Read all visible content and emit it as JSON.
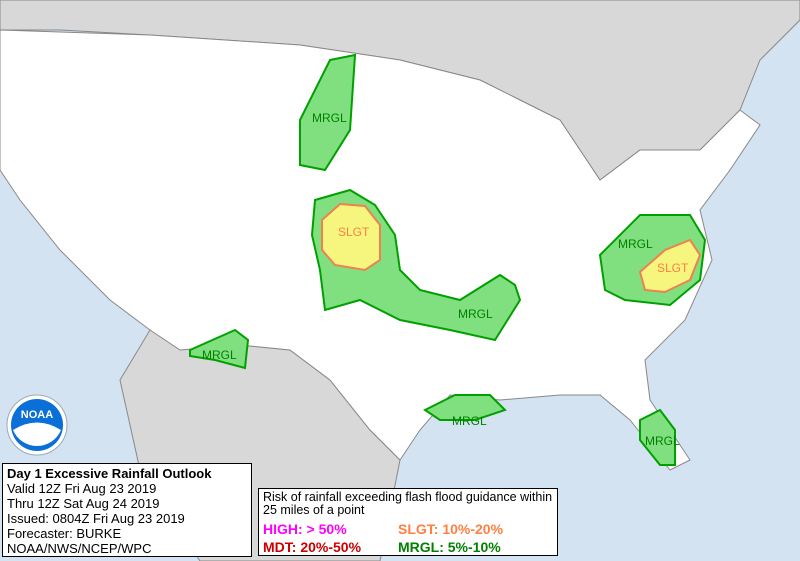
{
  "info": {
    "title": "Day 1 Excessive Rainfall Outlook",
    "valid": "Valid 12Z Fri Aug 23 2019",
    "thru": "Thru 12Z Sat Aug 24 2019",
    "issued": "Issued: 0804Z Fri Aug 23 2019",
    "forecaster": "Forecaster: BURKE",
    "agency": "NOAA/NWS/NCEP/WPC"
  },
  "legend": {
    "description": "Risk of rainfall exceeding flash flood guidance within 25 miles of a point",
    "high": "HIGH: > 50%",
    "slgt": "SLGT: 10%-20%",
    "mdt": "MDT: 20%-50%",
    "mrgl": "MRGL: 5%-10%"
  },
  "colors": {
    "high": "#ff00ff",
    "slgt": "#ff8040",
    "mdt": "#cc0000",
    "mrgl": "#008000",
    "mrgl_fill": "#80e080",
    "slgt_fill": "#f6f67f",
    "ocean": "#d3e3f1",
    "foreign_land": "#d8d8d8"
  },
  "areas": [
    "MRGL",
    "SLGT",
    "MRGL",
    "MRGL",
    "SLGT",
    "MRGL",
    "MRGL",
    "MRGL",
    "MRGL"
  ],
  "logo": "NOAA"
}
